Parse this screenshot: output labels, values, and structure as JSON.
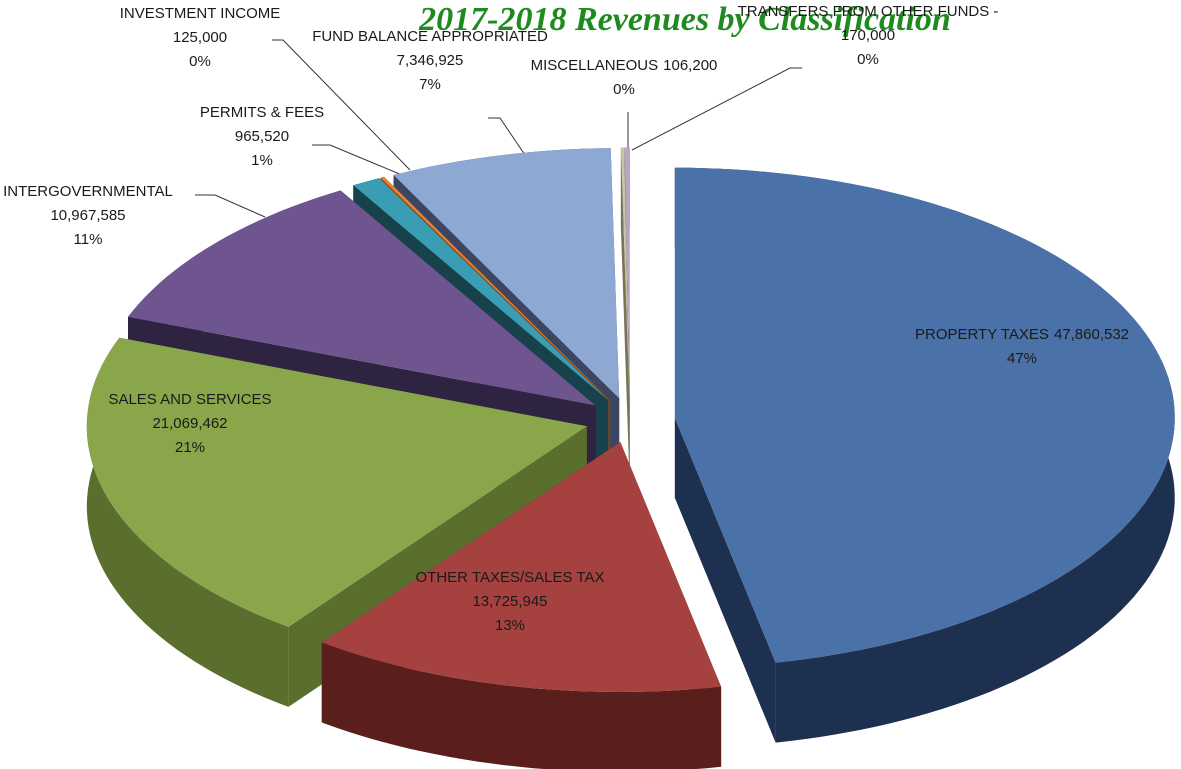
{
  "chart_data": {
    "type": "pie",
    "title": "2017-2018 Revenues by Classification",
    "categories": [
      "PROPERTY TAXES",
      "OTHER TAXES/SALES TAX",
      "SALES AND SERVICES",
      "INTERGOVERNMENTAL",
      "PERMITS & FEES",
      "INVESTMENT INCOME",
      "FUND BALANCE APPROPRIATED",
      "MISCELLANEOUS",
      "TRANSFERS FROM OTHER FUNDS -"
    ],
    "values": [
      47860532,
      13725945,
      21069462,
      10967585,
      965520,
      125000,
      7346925,
      106200,
      170000
    ],
    "value_labels": [
      "47,860,532",
      "13,725,945",
      "21,069,462",
      "10,967,585",
      "965,520",
      "125,000",
      "7,346,925",
      "106,200",
      "170,000"
    ],
    "percent_labels": [
      "47%",
      "13%",
      "21%",
      "11%",
      "1%",
      "0%",
      "7%",
      "0%",
      "0%"
    ],
    "colors": [
      "#4a72a8",
      "#a5413f",
      "#8aa64b",
      "#6f5590",
      "#3a9db3",
      "#e8822f",
      "#8ea8d4",
      "#c9c6a0",
      "#b8a6c8"
    ],
    "side_colors": [
      "#1e3050",
      "#5a1e1d",
      "#5a6e2e",
      "#2e2340",
      "#17414b",
      "#8a4a18",
      "#3d4660",
      "#77745a",
      "#6a5a78"
    ]
  }
}
